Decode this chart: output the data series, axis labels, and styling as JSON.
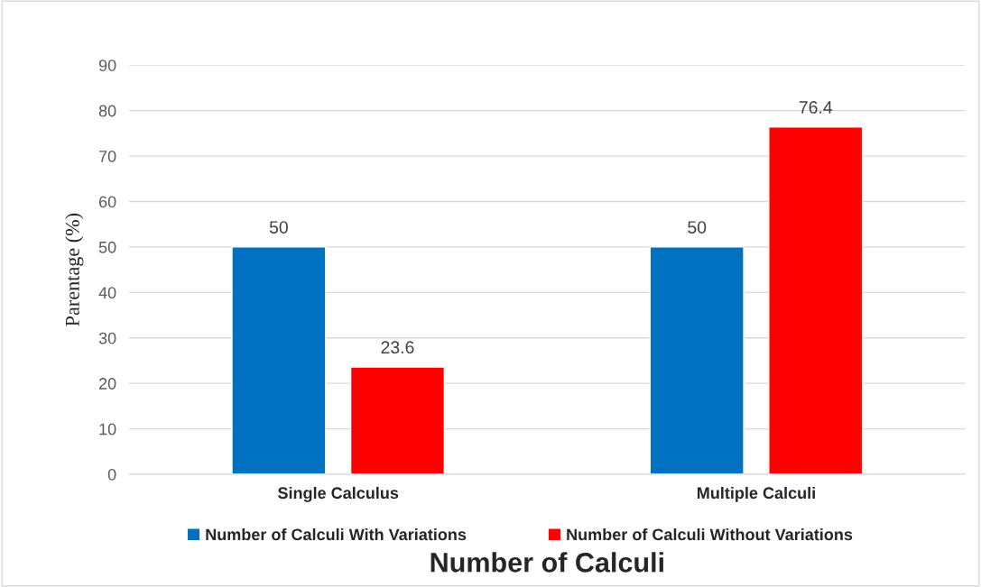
{
  "chart_data": {
    "type": "bar",
    "xlabel": "Number of Calculi",
    "ylabel": "Parentage (%)",
    "categories": [
      "Single Calculus",
      "Multiple Calculi"
    ],
    "series": [
      {
        "name": "Number of Calculi With Variations",
        "color": "#0070c0",
        "values": [
          50,
          50
        ]
      },
      {
        "name": "Number of Calculi Without Variations",
        "color": "#ff0000",
        "values": [
          23.6,
          76.4
        ]
      }
    ],
    "ylim": [
      0,
      90
    ],
    "yticks": [
      0,
      10,
      20,
      30,
      40,
      50,
      60,
      70,
      80,
      90
    ],
    "grid": "y",
    "legend": "bottom",
    "data_labels": true
  }
}
